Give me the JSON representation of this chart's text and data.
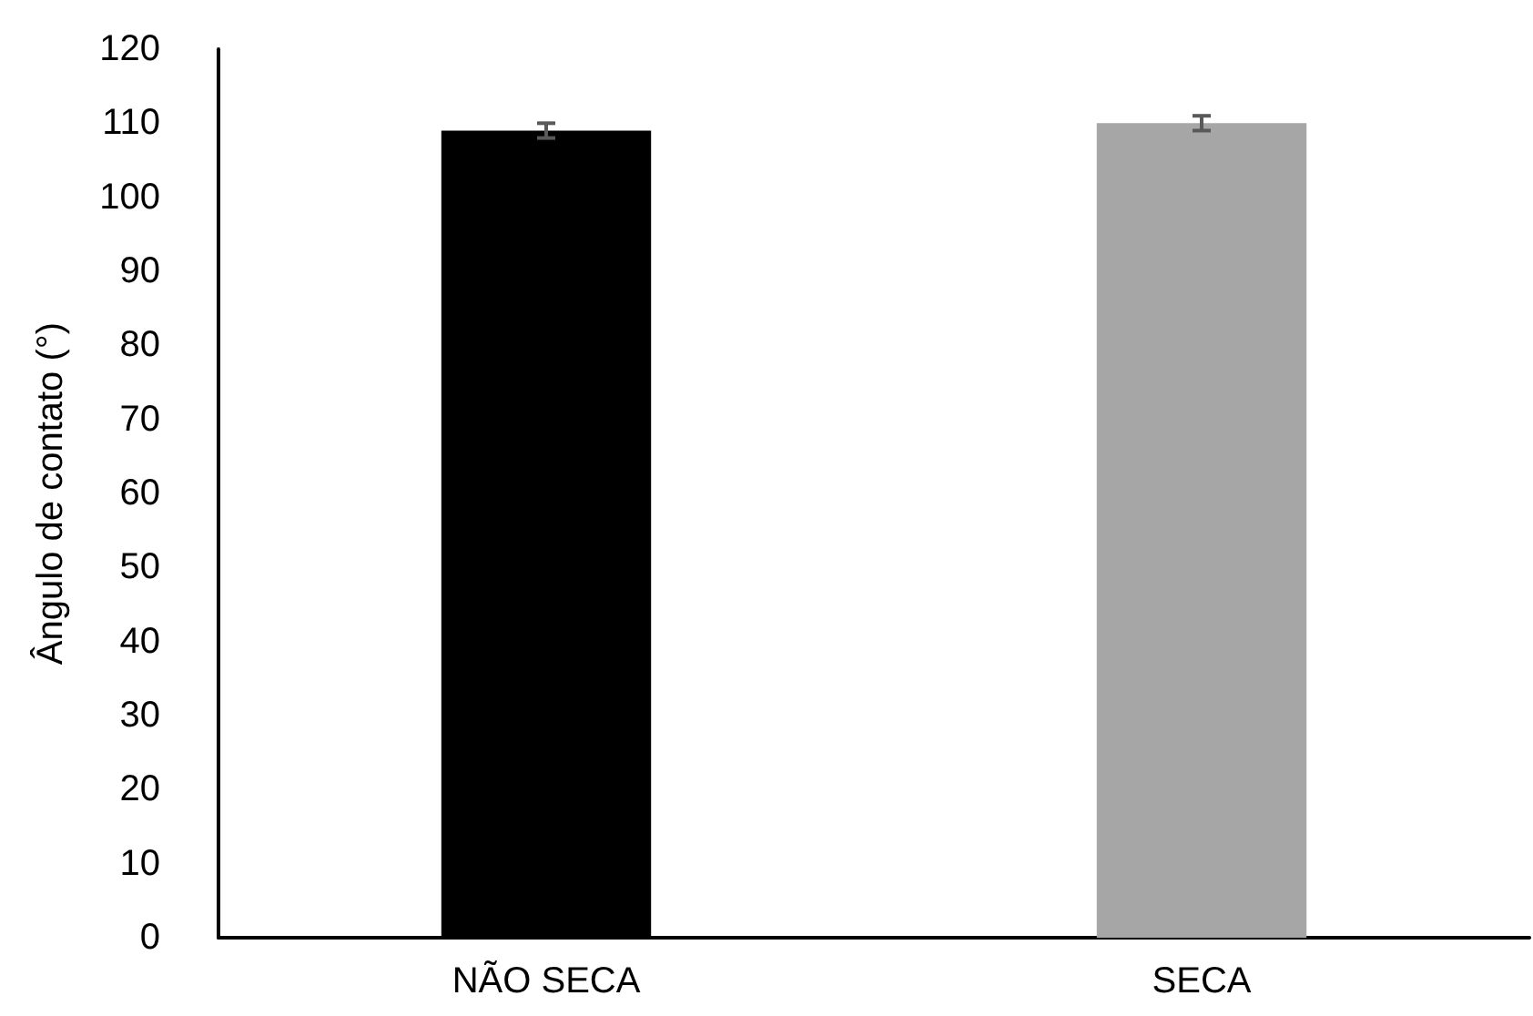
{
  "chart_data": {
    "type": "bar",
    "ylabel": "Ângulo de contato (°)",
    "categories": [
      "NÃO SECA",
      "SECA"
    ],
    "values": [
      109,
      110
    ],
    "colors": [
      "#000000",
      "#a6a6a6"
    ],
    "errors": [
      1,
      1
    ],
    "ylim": [
      0,
      120
    ],
    "yticks": [
      0,
      10,
      20,
      30,
      40,
      50,
      60,
      70,
      80,
      90,
      100,
      110,
      120
    ]
  }
}
